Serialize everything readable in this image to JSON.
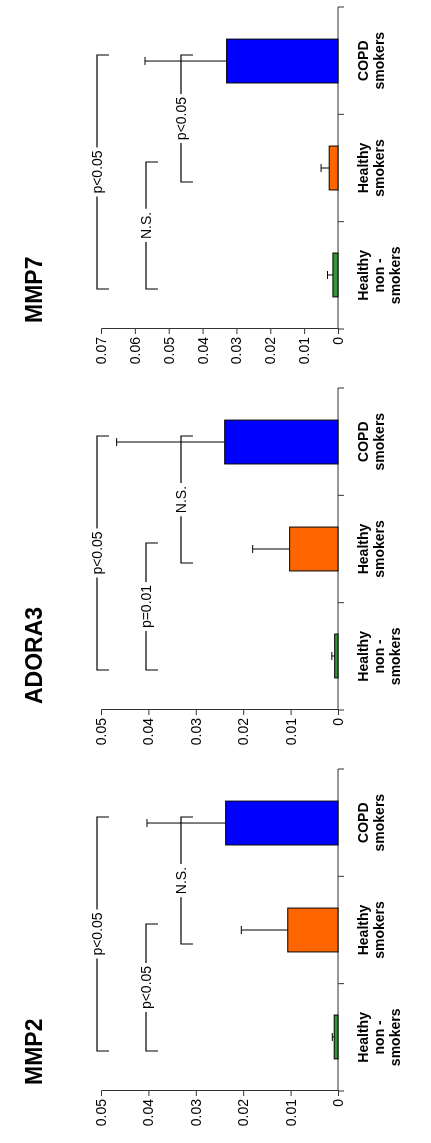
{
  "chart_data": [
    {
      "type": "bar",
      "orientation": "horizontal",
      "title": "MMP7",
      "categories": [
        "COPD smokers",
        "Healthy smokers",
        "Healthy non - smokers"
      ],
      "values": [
        0.0329,
        0.0026,
        0.0015
      ],
      "colors": [
        "#0000ff",
        "#ff6600",
        "#339933"
      ],
      "errors": [
        [
          0.0329,
          0.057
        ],
        [
          0.0026,
          0.005
        ],
        [
          0.0015,
          0.0031
        ]
      ],
      "xlim": [
        0.07,
        0
      ],
      "xticks": [
        0.07,
        0.06,
        0.05,
        0.04,
        0.03,
        0.02,
        0.01,
        0
      ],
      "annotations": [
        "p<0.05",
        "N.S.",
        "p<0.05"
      ]
    },
    {
      "type": "bar",
      "orientation": "horizontal",
      "title": "ADORA3",
      "categories": [
        "COPD smokers",
        "Healthy smokers",
        "Healthy non - smokers"
      ],
      "values": [
        0.0239,
        0.0102,
        0.0007
      ],
      "colors": [
        "#0000ff",
        "#ff6600",
        "#339933"
      ],
      "errors": [
        [
          0.0239,
          0.0467
        ],
        [
          0.0102,
          0.018
        ],
        [
          0.0007,
          0.0013
        ]
      ],
      "xlim": [
        0.05,
        0
      ],
      "xticks": [
        0.05,
        0.04,
        0.03,
        0.02,
        0.01,
        0
      ],
      "annotations": [
        "p<0.05",
        "p=0.01",
        "N.S."
      ]
    },
    {
      "type": "bar",
      "orientation": "horizontal",
      "title": "MMP2",
      "categories": [
        "COPD smokers",
        "Healthy smokers",
        "Healthy non - smokers"
      ],
      "values": [
        0.0237,
        0.0106,
        0.0008
      ],
      "colors": [
        "#0000ff",
        "#ff6600",
        "#339933"
      ],
      "errors": [
        [
          0.0237,
          0.0403
        ],
        [
          0.0106,
          0.0204
        ],
        [
          0.0008,
          0.0012
        ]
      ],
      "xlim": [
        0.05,
        0
      ],
      "xticks": [
        0.05,
        0.04,
        0.03,
        0.02,
        0.01,
        0
      ],
      "annotations": [
        "p<0.05",
        "p<0.05",
        "N.S."
      ]
    }
  ]
}
